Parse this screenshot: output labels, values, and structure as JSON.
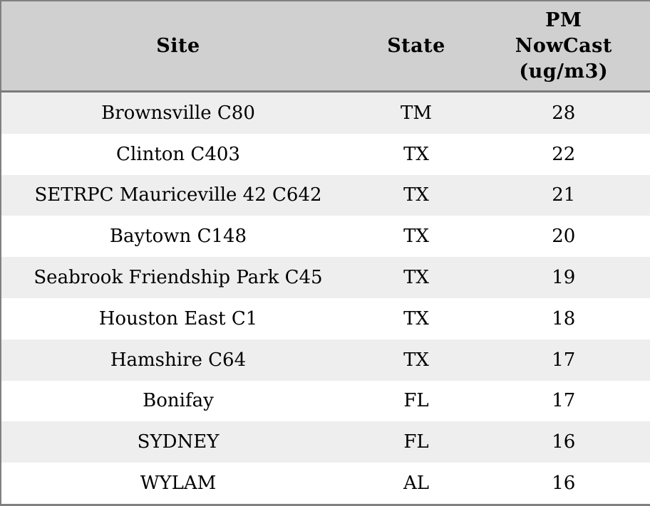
{
  "table": {
    "header": [
      {
        "label": "Site",
        "lines": [
          "Site"
        ]
      },
      {
        "label": "State",
        "lines": [
          "State"
        ]
      },
      {
        "label": "PM NowCast (ug/m3)",
        "lines": [
          "PM",
          "NowCast",
          "(ug/m3)"
        ]
      }
    ],
    "rows": [
      {
        "site": "Brownsville C80",
        "state": "TM",
        "pm": "28"
      },
      {
        "site": "Clinton C403",
        "state": "TX",
        "pm": "22"
      },
      {
        "site": "SETRPC Mauriceville 42 C642",
        "state": "TX",
        "pm": "21"
      },
      {
        "site": "Baytown C148",
        "state": "TX",
        "pm": "20"
      },
      {
        "site": "Seabrook Friendship Park C45",
        "state": "TX",
        "pm": "19"
      },
      {
        "site": "Houston East C1",
        "state": "TX",
        "pm": "18"
      },
      {
        "site": "Hamshire C64",
        "state": "TX",
        "pm": "17"
      },
      {
        "site": "Bonifay",
        "state": "FL",
        "pm": "17"
      },
      {
        "site": "SYDNEY",
        "state": "FL",
        "pm": "16"
      },
      {
        "site": "WYLAM",
        "state": "AL",
        "pm": "16"
      }
    ]
  },
  "colors": {
    "header_bg": "#d0d0d0",
    "row_stripe": "#eeeeee",
    "row_alt": "#ffffff",
    "border": "#808080",
    "header_separator": "#7a7a7a",
    "text": "#000000"
  },
  "chart_data": {
    "type": "table",
    "title": "",
    "columns": [
      "Site",
      "State",
      "PM NowCast (ug/m3)"
    ],
    "rows": [
      [
        "Brownsville C80",
        "TM",
        28
      ],
      [
        "Clinton C403",
        "TX",
        22
      ],
      [
        "SETRPC Mauriceville 42 C642",
        "TX",
        21
      ],
      [
        "Baytown C148",
        "TX",
        20
      ],
      [
        "Seabrook Friendship Park C45",
        "TX",
        19
      ],
      [
        "Houston East C1",
        "TX",
        18
      ],
      [
        "Hamshire C64",
        "TX",
        17
      ],
      [
        "Bonifay",
        "FL",
        17
      ],
      [
        "SYDNEY",
        "FL",
        16
      ],
      [
        "WYLAM",
        "AL",
        16
      ]
    ],
    "layout_hints": {
      "striped_rows": true,
      "header_background": "#d0d0d0",
      "stripe_background": "#eeeeee",
      "text_align": "center"
    }
  }
}
